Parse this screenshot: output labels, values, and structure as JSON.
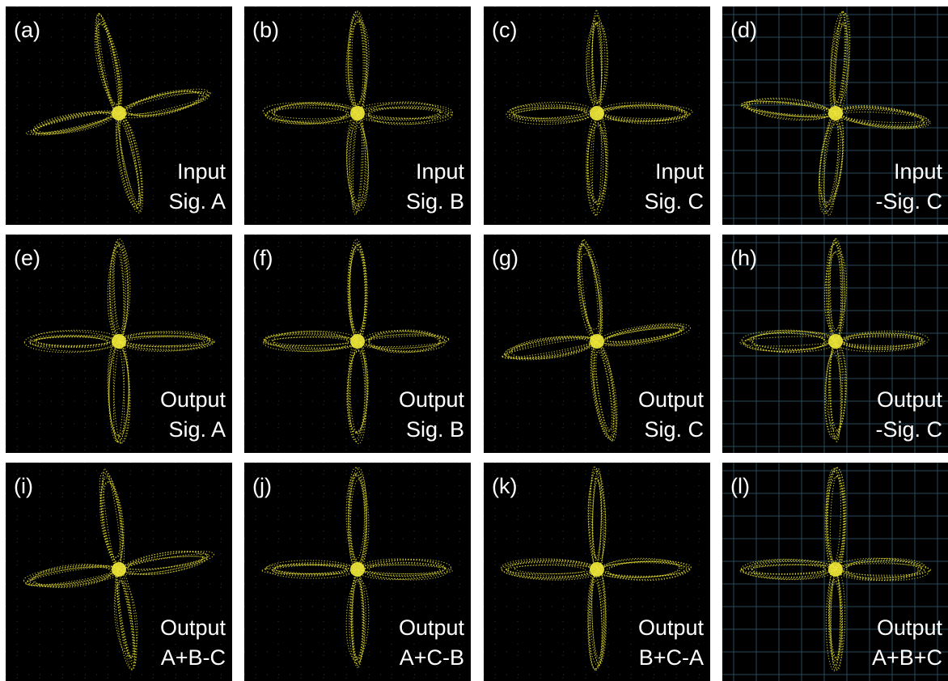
{
  "panels": [
    {
      "label": "(a)",
      "line1": "Input",
      "line2": "Sig. A"
    },
    {
      "label": "(b)",
      "line1": "Input",
      "line2": "Sig. B"
    },
    {
      "label": "(c)",
      "line1": "Input",
      "line2": "Sig. C"
    },
    {
      "label": "(d)",
      "line1": "Input",
      "line2": "-Sig. C"
    },
    {
      "label": "(e)",
      "line1": "Output",
      "line2": "Sig. A"
    },
    {
      "label": "(f)",
      "line1": "Output",
      "line2": "Sig. B"
    },
    {
      "label": "(g)",
      "line1": "Output",
      "line2": "Sig. C"
    },
    {
      "label": "(h)",
      "line1": "Output",
      "line2": "-Sig. C"
    },
    {
      "label": "(i)",
      "line1": "Output",
      "line2": "A+B-C"
    },
    {
      "label": "(j)",
      "line1": "Output",
      "line2": "A+C-B"
    },
    {
      "label": "(k)",
      "line1": "Output",
      "line2": "B+C-A"
    },
    {
      "label": "(l)",
      "line1": "Output",
      "line2": "A+B+C"
    }
  ]
}
